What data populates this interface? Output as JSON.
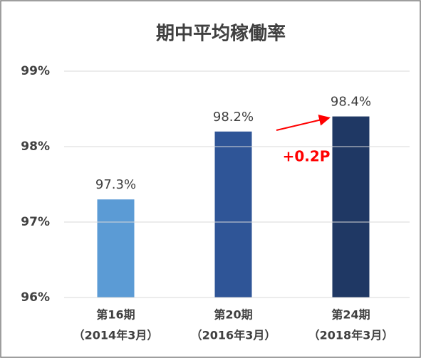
{
  "chart_data": {
    "type": "bar",
    "title": "期中平均稼働率",
    "categories": [
      [
        "第16期",
        "（2014年3月）"
      ],
      [
        "第20期",
        "（2016年3月）"
      ],
      [
        "第24期",
        "（2018年3月）"
      ]
    ],
    "values": [
      97.3,
      98.2,
      98.4
    ],
    "value_labels": [
      "97.3%",
      "98.2%",
      "98.4%"
    ],
    "colors": [
      "#5b9bd5",
      "#2f5597",
      "#1f3864"
    ],
    "ylim": [
      96,
      99
    ],
    "yticks": [
      {
        "value": 96,
        "label": "96%"
      },
      {
        "value": 97,
        "label": "97%"
      },
      {
        "value": 98,
        "label": "98%"
      },
      {
        "value": 99,
        "label": "99%"
      }
    ],
    "grid": true,
    "annotation": "+0.2P"
  }
}
